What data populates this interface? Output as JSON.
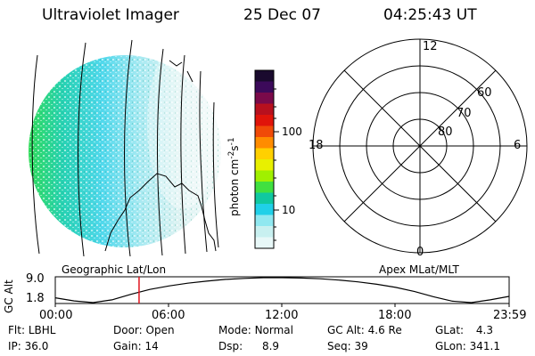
{
  "header": {
    "instrument": "Ultraviolet Imager",
    "date": "25 Dec 07",
    "time": "04:25:43 UT"
  },
  "colorbar": {
    "label_text": "photon cm",
    "label_exp1": "-2",
    "label_mid": "s",
    "label_exp2": "-1",
    "ticks": [
      "100",
      "10"
    ],
    "colors": [
      "#1a0a2e",
      "#3c0a5a",
      "#7a0a4a",
      "#b8101e",
      "#e0140a",
      "#f04a08",
      "#ff8c00",
      "#ffd000",
      "#e8f000",
      "#a0f000",
      "#40e040",
      "#10c8a0",
      "#20d0e8",
      "#90e8f0",
      "#c8f0f0",
      "#e8f8f8"
    ]
  },
  "polar": {
    "top_label": "12",
    "left_label": "18",
    "right_label": "6",
    "bottom_label": "0",
    "ring_labels": [
      "60",
      "70",
      "80"
    ]
  },
  "timeline": {
    "left_label": "Geographic Lat/Lon",
    "right_label": "Apex MLat/MLT",
    "axis_title": "GC Alt",
    "ytick_top": "9.0",
    "ytick_bottom": "1.8",
    "xticks": [
      "00:00",
      "06:00",
      "12:00",
      "18:00",
      "23:59"
    ]
  },
  "chart_data": {
    "type": "line",
    "title": "",
    "xlabel": "",
    "ylabel": "GC Alt",
    "x_unit": "hour",
    "xlim": [
      0,
      24
    ],
    "ylim": [
      1.8,
      9.0
    ],
    "x": [
      0,
      1,
      2,
      3,
      4,
      5,
      6,
      7,
      8,
      9,
      10,
      11,
      12,
      13,
      14,
      15,
      16,
      17,
      18,
      19,
      20,
      21,
      22,
      23,
      24
    ],
    "series": [
      {
        "values": [
          3.2,
          2.3,
          1.8,
          2.6,
          4.2,
          5.6,
          6.6,
          7.4,
          8.0,
          8.5,
          8.8,
          9.0,
          9.0,
          8.9,
          8.7,
          8.3,
          7.8,
          7.1,
          6.2,
          5.0,
          3.5,
          2.2,
          1.8,
          2.6,
          3.6
        ]
      }
    ],
    "marker_time": 4.43,
    "marker_color": "#e0141e"
  },
  "status": {
    "row1": [
      {
        "label": "Flt:",
        "value": "LBHL"
      },
      {
        "label": "Door:",
        "value": "Open"
      },
      {
        "label": "Mode:",
        "value": "Normal"
      },
      {
        "label": "GC Alt:",
        "value": "4.6 Re"
      },
      {
        "label": "GLat:",
        "value": "4.3"
      }
    ],
    "row2": [
      {
        "label": "IP:",
        "value": "36.0"
      },
      {
        "label": "Gain:",
        "value": "14"
      },
      {
        "label": "Dsp:",
        "value": "8.9"
      },
      {
        "label": "Seq:",
        "value": "39"
      },
      {
        "label": "GLon:",
        "value": "341.1"
      }
    ]
  }
}
